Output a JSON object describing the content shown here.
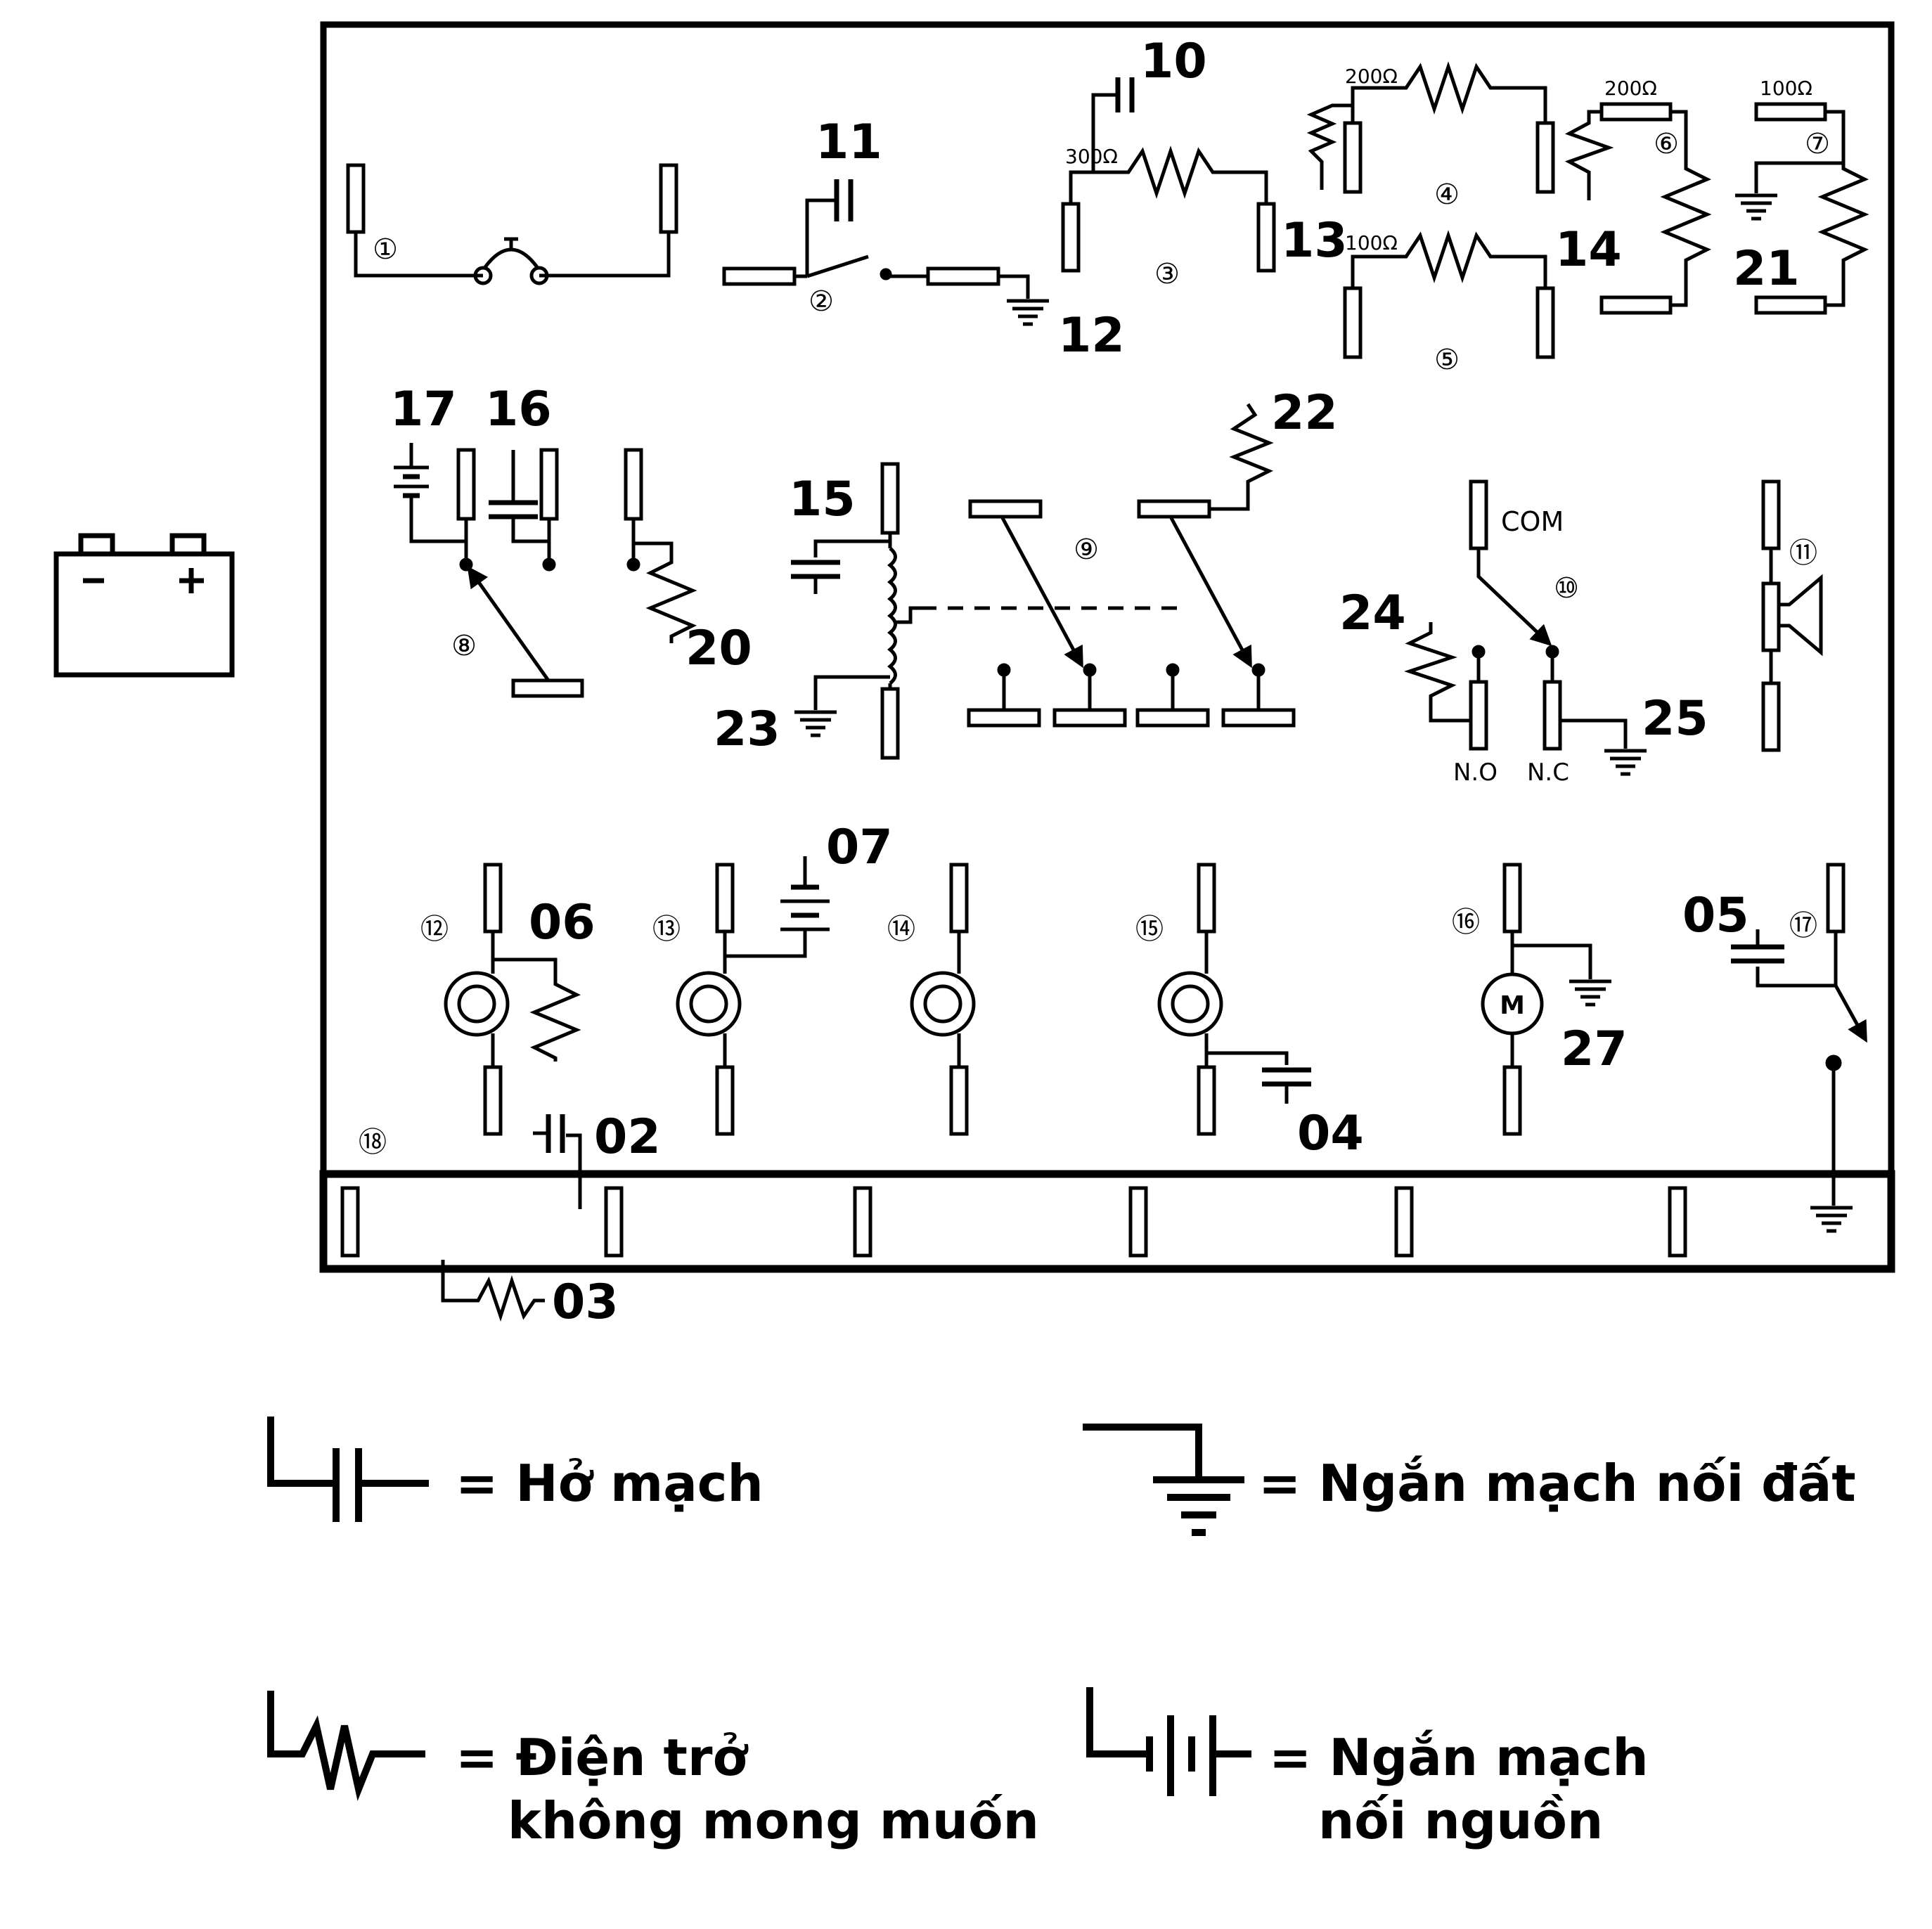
{
  "fault_labels": {
    "f02": "02",
    "f03": "03",
    "f04": "04",
    "f05": "05",
    "f06": "06",
    "f07": "07",
    "f10": "10",
    "f11": "11",
    "f12": "12",
    "f13": "13",
    "f14": "14",
    "f15": "15",
    "f16": "16",
    "f17": "17",
    "f20": "20",
    "f21": "21",
    "f22": "22",
    "f23": "23",
    "f24": "24",
    "f25": "25",
    "f27": "27"
  },
  "circuits": {
    "c1": "①",
    "c2": "②",
    "c3": "③",
    "c4": "④",
    "c5": "⑤",
    "c6": "⑥",
    "c7": "⑦",
    "c8": "⑧",
    "c9": "⑨",
    "c10": "⑩",
    "c11": "⑪",
    "c12": "⑫",
    "c13": "⑬",
    "c14": "⑭",
    "c15": "⑮",
    "c16": "⑯",
    "c17": "⑰",
    "c18": "⑱"
  },
  "resistor_values": {
    "r300": "300Ω",
    "r200a": "200Ω",
    "r100a": "100Ω",
    "r200b": "200Ω",
    "r100b": "100Ω"
  },
  "relay_terminals": {
    "com": "COM",
    "no": "N.O",
    "nc": "N.C"
  },
  "battery": {
    "minus": "−",
    "plus": "+"
  },
  "motor_label": "M",
  "legend": {
    "open_circuit": "= Hở mạch",
    "short_to_ground": "= Ngắn mạch nối đất",
    "unwanted_resistance_1": "= Điện trở",
    "unwanted_resistance_2": "không mong muốn",
    "short_to_power_1": "= Ngắn mạch",
    "short_to_power_2": "nối nguồn"
  }
}
